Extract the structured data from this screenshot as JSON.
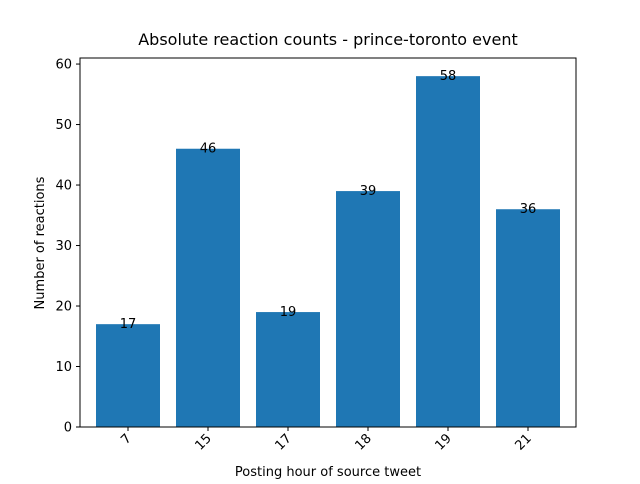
{
  "chart_data": {
    "type": "bar",
    "title": "Absolute reaction counts - prince-toronto event",
    "xlabel": "Posting hour of source tweet",
    "ylabel": "Number of reactions",
    "categories": [
      "7",
      "15",
      "17",
      "18",
      "19",
      "21"
    ],
    "values": [
      17,
      46,
      19,
      39,
      58,
      36
    ],
    "data_labels": [
      "17",
      "46",
      "19",
      "39",
      "58",
      "36"
    ],
    "ylim": [
      0,
      61
    ],
    "yticks": [
      0,
      10,
      20,
      30,
      40,
      50,
      60
    ],
    "xtick_rotation_deg": 45,
    "bar_color": "#1f77b4",
    "grid": false,
    "legend": "none"
  }
}
